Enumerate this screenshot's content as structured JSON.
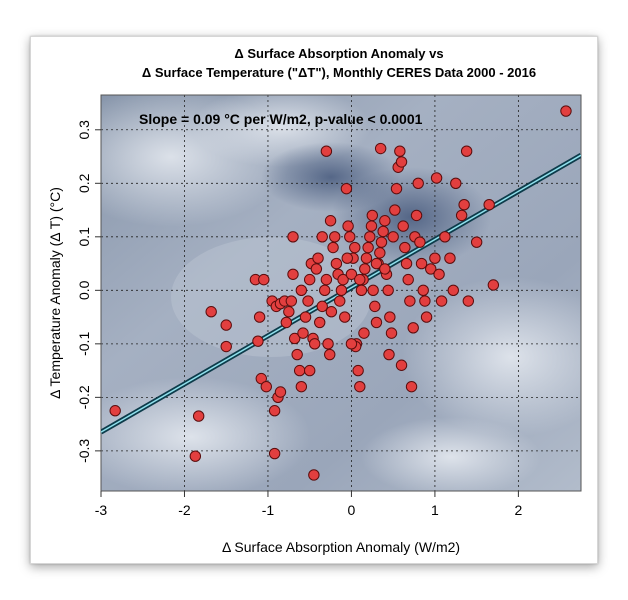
{
  "chart_data": {
    "type": "scatter",
    "title_lines": [
      "Δ Surface Absorption Anomaly vs",
      "Δ Surface Temperature (\"ΔT\"), Monthly CERES Data 2000 - 2016"
    ],
    "xlabel": "Δ Surface Absorption Anomaly (W/m2)",
    "ylabel": "Δ Temperature Anomaly  (Δ T) (°C)",
    "annotation": "Slope = 0.09 °C per W/m2, p-value < 0.0001",
    "xlim": [
      -3.0,
      2.75
    ],
    "ylim": [
      -0.375,
      0.365
    ],
    "x_ticks": [
      -3,
      -2,
      -1,
      0,
      1,
      2
    ],
    "y_ticks": [
      -0.3,
      -0.2,
      -0.1,
      0.0,
      0.1,
      0.2,
      0.3
    ],
    "x_tick_labels": [
      "-3",
      "-2",
      "-1",
      "0",
      "1",
      "2"
    ],
    "y_tick_labels": [
      "-0.3",
      "-0.2",
      "-0.1",
      "0.0",
      "0.1",
      "0.2",
      "0.3"
    ],
    "grid": true,
    "regression_line": {
      "slope": 0.09,
      "intercept": 0.005,
      "color": "#0d3b4a",
      "highlight": "#8fe0ec"
    },
    "marker": {
      "fill": "#e23f3f",
      "stroke": "#5a0d0d"
    },
    "points": [
      [
        2.57,
        0.335
      ],
      [
        -2.83,
        -0.225
      ],
      [
        -1.83,
        -0.235
      ],
      [
        -1.87,
        -0.31
      ],
      [
        -1.68,
        -0.04
      ],
      [
        -1.5,
        -0.065
      ],
      [
        -1.5,
        -0.105
      ],
      [
        -1.15,
        0.02
      ],
      [
        -1.05,
        0.02
      ],
      [
        -1.1,
        -0.05
      ],
      [
        -1.12,
        -0.095
      ],
      [
        -1.08,
        -0.165
      ],
      [
        -1.02,
        -0.18
      ],
      [
        -0.92,
        -0.225
      ],
      [
        -0.88,
        -0.2
      ],
      [
        -0.92,
        -0.305
      ],
      [
        -0.85,
        -0.19
      ],
      [
        -0.95,
        -0.02
      ],
      [
        -0.9,
        -0.03
      ],
      [
        -0.85,
        -0.025
      ],
      [
        -0.8,
        -0.02
      ],
      [
        -0.78,
        -0.06
      ],
      [
        -0.75,
        -0.04
      ],
      [
        -0.72,
        -0.02
      ],
      [
        -0.7,
        0.03
      ],
      [
        -0.68,
        -0.09
      ],
      [
        -0.65,
        -0.12
      ],
      [
        -0.62,
        -0.15
      ],
      [
        -0.6,
        -0.18
      ],
      [
        -0.58,
        -0.08
      ],
      [
        -0.55,
        -0.05
      ],
      [
        -0.52,
        -0.02
      ],
      [
        -0.5,
        0.02
      ],
      [
        -0.48,
        0.05
      ],
      [
        -0.46,
        -0.09
      ],
      [
        -0.44,
        -0.1
      ],
      [
        -0.42,
        0.04
      ],
      [
        -0.4,
        0.06
      ],
      [
        -0.38,
        -0.06
      ],
      [
        -0.35,
        -0.03
      ],
      [
        -0.32,
        0.0
      ],
      [
        -0.3,
        0.02
      ],
      [
        -0.28,
        -0.1
      ],
      [
        -0.26,
        -0.12
      ],
      [
        -0.24,
        -0.04
      ],
      [
        -0.22,
        0.08
      ],
      [
        -0.2,
        0.1
      ],
      [
        -0.18,
        0.05
      ],
      [
        -0.16,
        0.03
      ],
      [
        -0.14,
        -0.02
      ],
      [
        -0.12,
        0.0
      ],
      [
        -0.1,
        0.02
      ],
      [
        -0.08,
        -0.05
      ],
      [
        -0.06,
        0.19
      ],
      [
        -0.04,
        0.12
      ],
      [
        -0.02,
        0.1
      ],
      [
        0.0,
        0.03
      ],
      [
        0.02,
        0.06
      ],
      [
        0.04,
        0.08
      ],
      [
        0.06,
        -0.1
      ],
      [
        0.08,
        -0.15
      ],
      [
        0.1,
        -0.18
      ],
      [
        0.12,
        0.0
      ],
      [
        0.14,
        0.02
      ],
      [
        0.16,
        0.04
      ],
      [
        0.18,
        0.06
      ],
      [
        0.2,
        0.08
      ],
      [
        0.22,
        0.1
      ],
      [
        0.24,
        0.12
      ],
      [
        0.26,
        0.0
      ],
      [
        0.28,
        -0.03
      ],
      [
        0.3,
        -0.06
      ],
      [
        0.32,
        0.05
      ],
      [
        0.34,
        0.07
      ],
      [
        0.36,
        0.09
      ],
      [
        0.38,
        0.11
      ],
      [
        0.4,
        0.13
      ],
      [
        0.42,
        0.03
      ],
      [
        0.44,
        0.0
      ],
      [
        0.46,
        -0.05
      ],
      [
        0.48,
        -0.08
      ],
      [
        0.5,
        0.1
      ],
      [
        0.52,
        0.15
      ],
      [
        0.54,
        0.19
      ],
      [
        0.56,
        0.23
      ],
      [
        0.58,
        0.26
      ],
      [
        0.6,
        0.24
      ],
      [
        0.62,
        0.12
      ],
      [
        0.64,
        0.08
      ],
      [
        0.66,
        0.05
      ],
      [
        0.68,
        0.02
      ],
      [
        0.7,
        -0.02
      ],
      [
        0.72,
        -0.18
      ],
      [
        0.74,
        -0.07
      ],
      [
        0.76,
        0.1
      ],
      [
        0.78,
        0.14
      ],
      [
        0.8,
        0.2
      ],
      [
        0.82,
        0.09
      ],
      [
        0.84,
        0.05
      ],
      [
        0.86,
        0.0
      ],
      [
        0.88,
        -0.02
      ],
      [
        0.9,
        -0.05
      ],
      [
        0.95,
        0.04
      ],
      [
        1.0,
        0.06
      ],
      [
        1.02,
        0.21
      ],
      [
        1.05,
        0.03
      ],
      [
        1.08,
        -0.02
      ],
      [
        1.12,
        0.1
      ],
      [
        1.18,
        0.06
      ],
      [
        1.22,
        0.0
      ],
      [
        1.25,
        0.2
      ],
      [
        1.32,
        0.14
      ],
      [
        1.35,
        0.16
      ],
      [
        1.38,
        0.26
      ],
      [
        1.4,
        -0.02
      ],
      [
        1.5,
        0.09
      ],
      [
        1.65,
        0.16
      ],
      [
        1.7,
        0.01
      ],
      [
        -0.45,
        -0.345
      ],
      [
        -0.3,
        0.26
      ],
      [
        0.35,
        0.265
      ],
      [
        0.05,
        -0.105
      ],
      [
        0.0,
        -0.1
      ],
      [
        0.15,
        -0.08
      ],
      [
        -0.7,
        0.1
      ],
      [
        -0.6,
        0.0
      ],
      [
        -0.5,
        -0.15
      ],
      [
        0.25,
        0.14
      ],
      [
        0.45,
        -0.12
      ],
      [
        0.6,
        -0.14
      ],
      [
        -0.25,
        0.13
      ],
      [
        -0.35,
        0.1
      ],
      [
        0.3,
        0.05
      ],
      [
        0.4,
        0.04
      ],
      [
        0.1,
        0.02
      ],
      [
        -0.05,
        0.06
      ]
    ]
  }
}
